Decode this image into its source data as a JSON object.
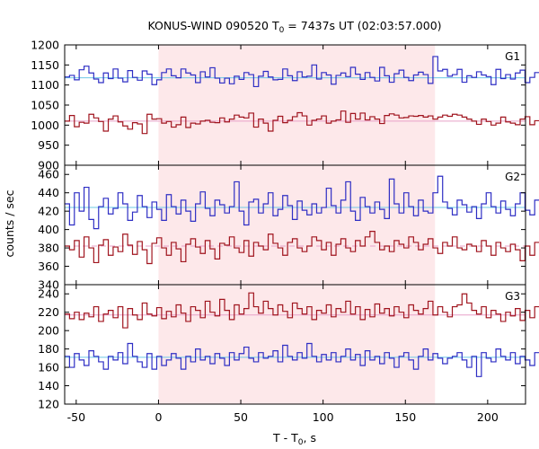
{
  "chart_data": {
    "type": "line",
    "title_main": "KONUS-WIND 090520 T",
    "title_sub": "0",
    "title_rest": " = 7437s UT (02:03:57.000)",
    "xlabel_main": "T - T",
    "xlabel_sub": "0",
    "xlabel_rest": ", s",
    "ylabel": "counts / sec",
    "xlim": [
      -57,
      223
    ],
    "x_ticks": [
      -50,
      0,
      50,
      100,
      150,
      200
    ],
    "shaded_interval": [
      0,
      168
    ],
    "bin_width": 2.944,
    "colors": {
      "blue": "#2e2ec4",
      "red": "#a0141e",
      "blue_mean": "#6ec8e6",
      "red_mean": "#e8a0c8",
      "shade": "#fde8ea"
    },
    "panels": [
      {
        "label": "G1",
        "ylim": [
          900,
          1200
        ],
        "y_ticks": [
          900,
          950,
          1000,
          1050,
          1100,
          1150,
          1200
        ],
        "series": [
          {
            "color_key": "blue",
            "mean": 1118,
            "values": [
              1120,
              1124,
              1113,
              1138,
              1147,
              1130,
              1115,
              1106,
              1130,
              1116,
              1140,
              1117,
              1108,
              1136,
              1119,
              1112,
              1135,
              1127,
              1101,
              1113,
              1131,
              1140,
              1123,
              1118,
              1140,
              1130,
              1125,
              1106,
              1133,
              1120,
              1143,
              1117,
              1105,
              1117,
              1103,
              1122,
              1114,
              1131,
              1126,
              1096,
              1122,
              1134,
              1120,
              1113,
              1114,
              1140,
              1123,
              1111,
              1133,
              1120,
              1122,
              1150,
              1115,
              1131,
              1125,
              1102,
              1124,
              1130,
              1121,
              1144,
              1127,
              1114,
              1131,
              1119,
              1110,
              1144,
              1123,
              1107,
              1128,
              1137,
              1119,
              1111,
              1125,
              1132,
              1126,
              1104,
              1171,
              1135,
              1139,
              1122,
              1126,
              1139,
              1107,
              1123,
              1119,
              1133,
              1125,
              1121,
              1101,
              1139,
              1116,
              1126,
              1115,
              1130,
              1137,
              1106,
              1119,
              1131,
              1123,
              1111
            ]
          },
          {
            "color_key": "red",
            "mean": 1010,
            "values": [
              1010,
              1024,
              996,
              1007,
              1005,
              1027,
              1018,
              1009,
              985,
              1015,
              1023,
              1008,
              998,
              990,
              1006,
              1003,
              979,
              1027,
              1015,
              1016,
              1005,
              1009,
              995,
              1001,
              1020,
              994,
              1005,
              1003,
              1010,
              1012,
              1007,
              1006,
              1018,
              1008,
              1015,
              1025,
              1020,
              1018,
              1030,
              995,
              1015,
              1005,
              985,
              1012,
              1022,
              1006,
              1012,
              1021,
              1031,
              1023,
              1000,
              1012,
              1015,
              1023,
              1005,
              1010,
              1013,
              1035,
              1007,
              1029,
              1015,
              1030,
              1013,
              1021,
              1015,
              1004,
              1024,
              1028,
              1025,
              1018,
              1019,
              1023,
              1022,
              1024,
              1020,
              1023,
              1015,
              1020,
              1025,
              1022,
              1027,
              1025,
              1020,
              1015,
              1010,
              1002,
              1015,
              1009,
              1000,
              1005,
              1020,
              1008,
              1005,
              1001,
              1015,
              1021,
              1001,
              1011,
              1018,
              1012
            ]
          }
        ]
      },
      {
        "label": "G2",
        "ylim": [
          340,
          470
        ],
        "y_ticks": [
          340,
          360,
          380,
          400,
          420,
          440,
          460
        ],
        "series": [
          {
            "color_key": "blue",
            "mean": 424,
            "values": [
              428,
              405,
              440,
              420,
              446,
              411,
              401,
              425,
              434,
              417,
              423,
              440,
              428,
              410,
              419,
              437,
              425,
              413,
              430,
              422,
              410,
              438,
              425,
              417,
              432,
              420,
              409,
              428,
              441,
              423,
              415,
              432,
              427,
              418,
              425,
              452,
              420,
              405,
              430,
              433,
              418,
              428,
              440,
              415,
              422,
              437,
              426,
              411,
              431,
              421,
              416,
              428,
              418,
              424,
              445,
              426,
              418,
              432,
              452,
              420,
              410,
              435,
              425,
              418,
              430,
              422,
              412,
              455,
              428,
              418,
              440,
              425,
              415,
              432,
              420,
              418,
              440,
              458,
              430,
              423,
              416,
              432,
              427,
              419,
              425,
              412,
              428,
              440,
              425,
              418,
              431,
              422,
              415,
              428,
              440,
              421,
              416,
              432,
              425,
              420
            ]
          },
          {
            "color_key": "red",
            "mean": 382,
            "values": [
              382,
              378,
              388,
              370,
              392,
              380,
              364,
              383,
              389,
              372,
              381,
              376,
              395,
              383,
              373,
              387,
              378,
              363,
              385,
              391,
              380,
              372,
              386,
              379,
              365,
              384,
              390,
              381,
              374,
              388,
              379,
              368,
              385,
              383,
              392,
              380,
              375,
              388,
              371,
              386,
              382,
              378,
              395,
              385,
              380,
              372,
              386,
              390,
              380,
              376,
              382,
              392,
              388,
              378,
              386,
              372,
              384,
              390,
              380,
              376,
              388,
              382,
              392,
              398,
              386,
              378,
              382,
              376,
              388,
              384,
              380,
              392,
              386,
              378,
              384,
              390,
              380,
              374,
              386,
              382,
              392,
              380,
              378,
              384,
              382,
              376,
              388,
              382,
              372,
              386,
              380,
              376,
              384,
              378,
              366,
              382,
              372,
              386,
              376,
              356
            ]
          }
        ]
      },
      {
        "label": "G3",
        "ylim": [
          120,
          250
        ],
        "y_ticks": [
          120,
          140,
          160,
          180,
          200,
          220,
          240
        ],
        "series": [
          {
            "color_key": "red",
            "mean": 217,
            "values": [
              218,
              213,
              220,
              212,
              219,
              215,
              226,
              210,
              218,
              222,
              214,
              226,
              203,
              224,
              217,
              212,
              230,
              218,
              216,
              225,
              213,
              221,
              215,
              228,
              219,
              210,
              226,
              222,
              214,
              232,
              220,
              216,
              234,
              222,
              212,
              228,
              218,
              224,
              241,
              226,
              219,
              232,
              224,
              217,
              228,
              221,
              214,
              230,
              224,
              218,
              226,
              212,
              222,
              219,
              228,
              215,
              224,
              220,
              232,
              218,
              226,
              212,
              223,
              215,
              229,
              219,
              224,
              216,
              226,
              220,
              214,
              228,
              222,
              218,
              224,
              232,
              217,
              226,
              220,
              215,
              226,
              228,
              240,
              230,
              222,
              218,
              226,
              214,
              222,
              218,
              210,
              220,
              216,
              224,
              211,
              222,
              214,
              226,
              219,
              212
            ]
          },
          {
            "color_key": "blue",
            "mean": 171,
            "values": [
              172,
              160,
              175,
              168,
              162,
              178,
              172,
              166,
              158,
              172,
              168,
              176,
              164,
              186,
              172,
              166,
              160,
              175,
              158,
              172,
              162,
              168,
              175,
              170,
              158,
              172,
              166,
              180,
              168,
              172,
              164,
              175,
              170,
              162,
              176,
              168,
              175,
              182,
              170,
              166,
              176,
              170,
              172,
              178,
              166,
              184,
              172,
              168,
              176,
              170,
              186,
              172,
              166,
              174,
              168,
              176,
              166,
              172,
              180,
              168,
              174,
              162,
              178,
              168,
              172,
              164,
              176,
              170,
              160,
              172,
              176,
              168,
              158,
              172,
              180,
              168,
              175,
              170,
              164,
              170,
              172,
              176,
              168,
              160,
              172,
              150,
              176,
              170,
              166,
              180,
              172,
              168,
              176,
              164,
              172,
              168,
              162,
              176,
              170,
              175
            ]
          }
        ]
      }
    ]
  }
}
